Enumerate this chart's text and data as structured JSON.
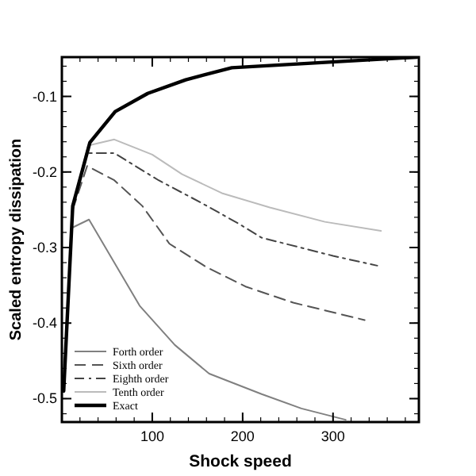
{
  "chart_data": {
    "type": "line",
    "xlabel": "Shock speed",
    "ylabel": "Scaled entropy dissipation",
    "xlim": [
      0,
      395
    ],
    "ylim": [
      -0.531,
      -0.048
    ],
    "xticks": [
      100,
      200,
      300
    ],
    "yticks": [
      -0.5,
      -0.4,
      -0.3,
      -0.2,
      -0.1
    ],
    "grid": false,
    "legend": "bottom left",
    "series": [
      {
        "name": "Forth order",
        "color": "#808080",
        "line_style": "solid",
        "x": [
          11,
          30,
          86,
          125,
          163,
          221,
          265,
          314
        ],
        "values": [
          -0.274,
          -0.263,
          -0.377,
          -0.429,
          -0.467,
          -0.494,
          -0.513,
          -0.528
        ]
      },
      {
        "name": "Sixth order",
        "color": "#555555",
        "line_style": "dashed",
        "x": [
          12,
          28,
          58,
          89,
          119,
          160,
          204,
          256,
          335
        ],
        "values": [
          -0.25,
          -0.192,
          -0.211,
          -0.245,
          -0.295,
          -0.326,
          -0.352,
          -0.373,
          -0.396
        ]
      },
      {
        "name": "Eighth order",
        "color": "#444444",
        "line_style": "dashdot",
        "x": [
          12,
          28,
          58,
          107,
          153,
          195,
          221,
          300,
          349
        ],
        "values": [
          -0.245,
          -0.175,
          -0.175,
          -0.211,
          -0.24,
          -0.268,
          -0.287,
          -0.311,
          -0.324
        ]
      },
      {
        "name": "Tenth order",
        "color": "#bbbbbb",
        "line_style": "solid",
        "x": [
          12,
          29,
          58,
          100,
          133,
          177,
          230,
          291,
          353
        ],
        "values": [
          -0.245,
          -0.165,
          -0.157,
          -0.177,
          -0.203,
          -0.228,
          -0.247,
          -0.266,
          -0.278
        ]
      },
      {
        "name": "Exact",
        "color": "#000000",
        "line_style": "solid",
        "x": [
          2,
          12,
          31,
          59,
          95,
          137,
          188,
          393
        ],
        "values": [
          -0.49,
          -0.245,
          -0.161,
          -0.12,
          -0.096,
          -0.078,
          -0.062,
          -0.048
        ]
      }
    ]
  }
}
